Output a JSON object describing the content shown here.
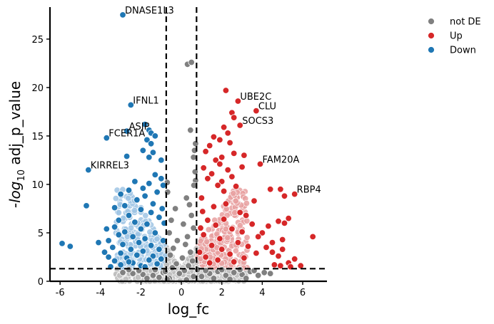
{
  "chart_data": {
    "type": "scatter",
    "title": "",
    "xlabel": "log_fc",
    "ylabel_parts": {
      "neg": "-",
      "log": "log",
      "base": "10",
      "rest": " adj_p_value"
    },
    "xlim": [
      -6.5,
      7.2
    ],
    "ylim": [
      0,
      28.3
    ],
    "xticks": [
      -6,
      -4,
      -2,
      0,
      2,
      4,
      6
    ],
    "yticks": [
      0,
      5,
      10,
      15,
      20,
      25
    ],
    "thresholds": {
      "log_fc": [
        -0.75,
        0.75
      ],
      "adj_p_value_log10": 1.3
    },
    "grid": false,
    "legend_position": "top-right",
    "colors": {
      "not DE": "#808080",
      "Up": "#d62728",
      "Down": "#1f77b4"
    },
    "series": [
      {
        "name": "not DE",
        "points": [
          [
            0.3,
            22.4
          ],
          [
            0.5,
            22.6
          ],
          [
            0.45,
            15.6
          ],
          [
            0.65,
            13.5
          ],
          [
            0.7,
            14.2
          ],
          [
            0.6,
            12.8
          ],
          [
            0.68,
            11.3
          ],
          [
            0.7,
            10.4
          ],
          [
            0.62,
            9.9
          ],
          [
            -0.7,
            10.2
          ],
          [
            -0.68,
            9.2
          ],
          [
            0.25,
            8.6
          ],
          [
            0.4,
            7.9
          ],
          [
            -0.3,
            7.5
          ],
          [
            0.5,
            6.8
          ],
          [
            -0.5,
            6.3
          ],
          [
            0.1,
            5.9
          ],
          [
            0.6,
            5.5
          ],
          [
            -0.6,
            5.0
          ],
          [
            0.3,
            4.6
          ],
          [
            -0.2,
            4.2
          ],
          [
            0.2,
            3.8
          ],
          [
            -0.4,
            3.4
          ],
          [
            0.45,
            3.0
          ],
          [
            -0.55,
            2.7
          ],
          [
            0.05,
            2.4
          ],
          [
            0.55,
            2.1
          ],
          [
            -0.25,
            1.8
          ],
          [
            0.35,
            1.6
          ],
          [
            -0.45,
            1.4
          ],
          [
            0.15,
            1.1
          ],
          [
            -0.1,
            0.8
          ],
          [
            0.6,
            0.5
          ],
          [
            -0.6,
            0.3
          ],
          [
            0.25,
            0.15
          ],
          [
            -2.9,
            0.9
          ],
          [
            -2.4,
            0.8
          ],
          [
            -1.9,
            0.7
          ],
          [
            -1.4,
            0.6
          ],
          [
            -1.1,
            0.4
          ],
          [
            -2.1,
            1.1
          ],
          [
            -1.7,
            0.3
          ],
          [
            -1.3,
            1.2
          ],
          [
            -0.9,
            0.9
          ],
          [
            -2.6,
            1.2
          ],
          [
            1.0,
            0.5
          ],
          [
            1.4,
            0.8
          ],
          [
            1.8,
            1.0
          ],
          [
            2.2,
            0.6
          ],
          [
            2.6,
            0.9
          ],
          [
            3.0,
            0.7
          ],
          [
            3.4,
            1.0
          ],
          [
            3.8,
            0.6
          ],
          [
            4.1,
            0.9
          ],
          [
            4.4,
            0.8
          ],
          [
            2.0,
            1.2
          ],
          [
            1.2,
            1.1
          ],
          [
            2.9,
            1.2
          ],
          [
            3.6,
            1.1
          ],
          [
            1.6,
            0.3
          ],
          [
            2.4,
            0.2
          ],
          [
            3.2,
            0.3
          ],
          [
            -0.8,
            1.0
          ],
          [
            0.8,
            1.2
          ],
          [
            -0.7,
            0.2
          ]
        ]
      },
      {
        "name": "Up",
        "points": [
          [
            2.2,
            19.7
          ],
          [
            2.8,
            18.6
          ],
          [
            3.7,
            17.6
          ],
          [
            2.5,
            17.4
          ],
          [
            2.6,
            16.9
          ],
          [
            2.9,
            16.1
          ],
          [
            2.1,
            15.9
          ],
          [
            2.3,
            15.3
          ],
          [
            1.6,
            14.9
          ],
          [
            1.9,
            14.6
          ],
          [
            2.4,
            14.3
          ],
          [
            1.4,
            14.0
          ],
          [
            1.2,
            13.4
          ],
          [
            2.6,
            13.2
          ],
          [
            3.1,
            13.0
          ],
          [
            2.0,
            12.8
          ],
          [
            1.7,
            12.5
          ],
          [
            3.9,
            12.1
          ],
          [
            1.1,
            11.7
          ],
          [
            2.3,
            11.5
          ],
          [
            1.5,
            11.1
          ],
          [
            1.3,
            10.6
          ],
          [
            2.0,
            10.3
          ],
          [
            1.8,
            9.9
          ],
          [
            2.7,
            9.8
          ],
          [
            4.4,
            9.5
          ],
          [
            4.9,
            9.5
          ],
          [
            5.6,
            9.0
          ],
          [
            5.1,
            8.8
          ],
          [
            3.6,
            8.3
          ],
          [
            2.2,
            8.0
          ],
          [
            1.0,
            8.6
          ],
          [
            1.6,
            7.7
          ],
          [
            2.9,
            7.1
          ],
          [
            3.2,
            6.8
          ],
          [
            5.3,
            6.5
          ],
          [
            4.8,
            6.2
          ],
          [
            5.1,
            6.0
          ],
          [
            3.5,
            5.9
          ],
          [
            4.3,
            5.7
          ],
          [
            6.5,
            4.6
          ],
          [
            2.5,
            5.4
          ],
          [
            3.0,
            5.1
          ],
          [
            4.0,
            5.0
          ],
          [
            3.8,
            4.6
          ],
          [
            5.0,
            4.3
          ],
          [
            4.5,
            4.0
          ],
          [
            1.9,
            4.4
          ],
          [
            2.8,
            4.0
          ],
          [
            3.3,
            3.6
          ],
          [
            4.2,
            3.5
          ],
          [
            5.0,
            3.3
          ],
          [
            4.5,
            3.0
          ],
          [
            3.7,
            2.9
          ],
          [
            4.8,
            2.6
          ],
          [
            5.6,
            2.3
          ],
          [
            5.3,
            1.9
          ],
          [
            5.9,
            1.6
          ],
          [
            4.9,
            1.6
          ],
          [
            5.4,
            1.5
          ],
          [
            4.6,
            1.7
          ],
          [
            1.3,
            6.3
          ],
          [
            1.7,
            5.8
          ],
          [
            2.1,
            6.4
          ],
          [
            1.1,
            4.8
          ],
          [
            1.5,
            3.7
          ],
          [
            2.0,
            3.3
          ],
          [
            2.4,
            2.8
          ],
          [
            1.2,
            2.5
          ],
          [
            1.8,
            2.2
          ],
          [
            2.6,
            2.0
          ],
          [
            3.1,
            2.4
          ],
          [
            1.4,
            1.9
          ],
          [
            0.9,
            3.0
          ],
          [
            0.95,
            5.5
          ],
          [
            1.05,
            7.2
          ],
          [
            2.1,
            9.3
          ],
          [
            2.5,
            10.8
          ],
          [
            3.0,
            11.8
          ],
          [
            1.9,
            12.1
          ]
        ]
      },
      {
        "name": "Down",
        "points": [
          [
            -2.9,
            27.5
          ],
          [
            -2.5,
            18.2
          ],
          [
            -1.8,
            16.2
          ],
          [
            -1.6,
            15.6
          ],
          [
            -1.5,
            15.3
          ],
          [
            -1.3,
            15.0
          ],
          [
            -1.7,
            14.6
          ],
          [
            -3.7,
            14.8
          ],
          [
            -2.7,
            15.5
          ],
          [
            -1.5,
            14.2
          ],
          [
            -1.9,
            13.5
          ],
          [
            -1.4,
            13.3
          ],
          [
            -1.6,
            12.8
          ],
          [
            -2.7,
            12.9
          ],
          [
            -1.0,
            12.5
          ],
          [
            -4.6,
            11.5
          ],
          [
            -1.3,
            11.0
          ],
          [
            -1.0,
            10.6
          ],
          [
            -2.3,
            10.3
          ],
          [
            -1.6,
            10.1
          ],
          [
            -0.9,
            9.9
          ],
          [
            -1.9,
            9.6
          ],
          [
            -2.6,
            9.4
          ],
          [
            -1.2,
            9.2
          ],
          [
            -3.0,
            9.0
          ],
          [
            -1.8,
            8.8
          ],
          [
            -2.2,
            8.4
          ],
          [
            -1.4,
            8.0
          ],
          [
            -4.7,
            7.8
          ],
          [
            -3.3,
            7.6
          ],
          [
            -2.8,
            7.8
          ],
          [
            -2.0,
            7.4
          ],
          [
            -1.5,
            7.1
          ],
          [
            -2.6,
            6.8
          ],
          [
            -1.1,
            6.6
          ],
          [
            -3.1,
            6.3
          ],
          [
            -2.3,
            6.1
          ],
          [
            -1.7,
            5.9
          ],
          [
            -3.3,
            5.6
          ],
          [
            -3.7,
            5.4
          ],
          [
            -2.0,
            5.4
          ],
          [
            -2.8,
            5.1
          ],
          [
            -1.3,
            5.0
          ],
          [
            -3.1,
            4.8
          ],
          [
            -2.4,
            4.6
          ],
          [
            -1.8,
            4.4
          ],
          [
            -3.6,
            4.2
          ],
          [
            -4.1,
            4.0
          ],
          [
            -2.1,
            4.0
          ],
          [
            -2.9,
            3.8
          ],
          [
            -1.5,
            3.7
          ],
          [
            -5.9,
            3.9
          ],
          [
            -5.5,
            3.6
          ],
          [
            -3.4,
            3.5
          ],
          [
            -2.5,
            3.3
          ],
          [
            -1.9,
            3.1
          ],
          [
            -3.8,
            3.0
          ],
          [
            -3.0,
            2.9
          ],
          [
            -2.2,
            2.7
          ],
          [
            -1.4,
            2.6
          ],
          [
            -3.6,
            2.5
          ],
          [
            -2.7,
            2.4
          ],
          [
            -1.6,
            2.2
          ],
          [
            -3.3,
            2.1
          ],
          [
            -2.4,
            1.9
          ],
          [
            -1.2,
            1.8
          ],
          [
            -3.0,
            1.7
          ],
          [
            -2.0,
            1.6
          ],
          [
            -1.0,
            2.3
          ],
          [
            -0.9,
            4.2
          ],
          [
            -0.85,
            6.0
          ],
          [
            -0.95,
            7.5
          ],
          [
            -1.1,
            3.3
          ],
          [
            -2.6,
            2.0
          ],
          [
            -1.8,
            1.5
          ],
          [
            -3.5,
            1.5
          ]
        ]
      }
    ],
    "annotations": [
      {
        "label": "DNASE1L3",
        "x": -2.9,
        "y": 27.5
      },
      {
        "label": "IFNL1",
        "x": -2.5,
        "y": 18.2
      },
      {
        "label": "ASIP",
        "x": -2.7,
        "y": 15.5
      },
      {
        "label": "FCER1A",
        "x": -3.7,
        "y": 14.8
      },
      {
        "label": "KIRREL3",
        "x": -4.6,
        "y": 11.5
      },
      {
        "label": "UBE2C",
        "x": 2.8,
        "y": 18.6
      },
      {
        "label": "CLU",
        "x": 3.7,
        "y": 17.6
      },
      {
        "label": "SOCS3",
        "x": 2.9,
        "y": 16.1
      },
      {
        "label": "FAM20A",
        "x": 3.9,
        "y": 12.1
      },
      {
        "label": "RBP4",
        "x": 5.6,
        "y": 9.0
      }
    ]
  }
}
